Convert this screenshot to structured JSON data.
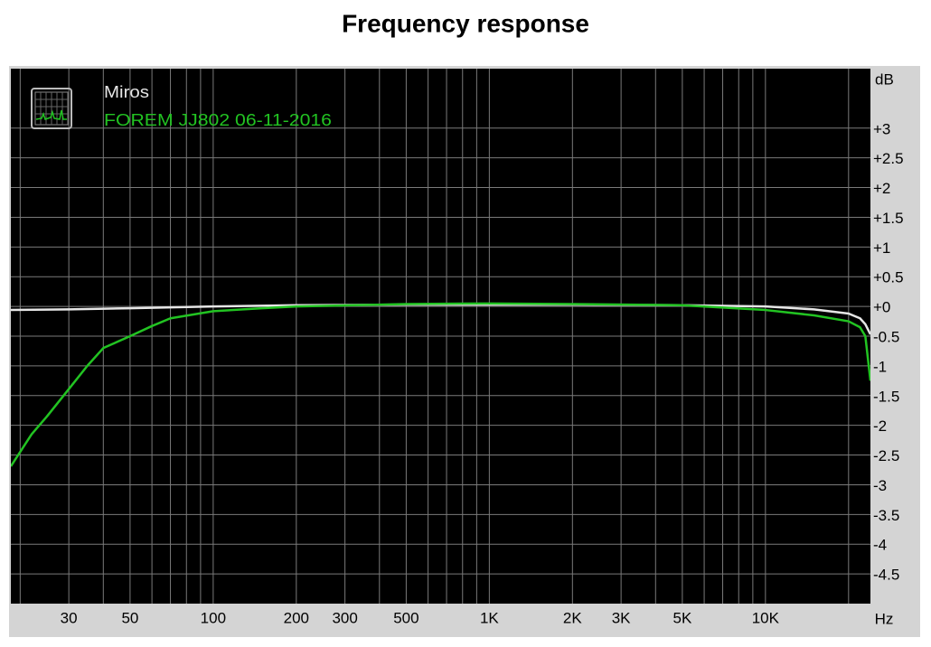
{
  "chart_data": {
    "type": "line",
    "title": "Frequency response",
    "x_label": "Hz",
    "y_label": "dB",
    "log_x": true,
    "grid": true,
    "xlim": [
      18.5,
      24000
    ],
    "ylim": [
      -5,
      4
    ],
    "xticks": [
      30,
      50,
      100,
      200,
      300,
      500,
      {
        "value": 1000,
        "label": "1K"
      },
      {
        "value": 2000,
        "label": "2K"
      },
      {
        "value": 3000,
        "label": "3K"
      },
      {
        "value": 5000,
        "label": "5K"
      },
      {
        "value": 10000,
        "label": "10K"
      }
    ],
    "minor_xticks": [
      20,
      40,
      60,
      70,
      80,
      90,
      400,
      600,
      700,
      800,
      900,
      4000,
      6000,
      7000,
      8000,
      9000,
      20000
    ],
    "yticks": [
      {
        "value": 3,
        "label": "+3"
      },
      {
        "value": 2.5,
        "label": "+2.5"
      },
      {
        "value": 2,
        "label": "+2"
      },
      {
        "value": 1.5,
        "label": "+1.5"
      },
      {
        "value": 1,
        "label": "+1"
      },
      {
        "value": 0.5,
        "label": "+0.5"
      },
      {
        "value": 0,
        "label": "+0"
      },
      -0.5,
      -1,
      -1.5,
      -2,
      -2.5,
      -3,
      -3.5,
      -4,
      -4.5
    ],
    "series": [
      {
        "name": "Miros",
        "color": "#e6e6e6",
        "x": [
          18.5,
          30,
          50,
          100,
          200,
          500,
          1000,
          2000,
          5000,
          10000,
          15000,
          20000,
          22000,
          23000,
          24000
        ],
        "values": [
          -0.06,
          -0.05,
          -0.03,
          0,
          0.02,
          0.03,
          0.03,
          0.03,
          0.02,
          0,
          -0.05,
          -0.12,
          -0.2,
          -0.3,
          -0.47
        ]
      },
      {
        "name": "FOREM JJ802 06-11-2016",
        "color": "#22c322",
        "x": [
          18.5,
          22,
          25,
          30,
          35,
          40,
          50,
          60,
          70,
          100,
          150,
          200,
          500,
          1000,
          2000,
          5000,
          10000,
          15000,
          20000,
          22000,
          23000,
          24000
        ],
        "values": [
          -2.69,
          -2.15,
          -1.85,
          -1.39,
          -1.0,
          -0.7,
          -0.5,
          -0.33,
          -0.2,
          -0.08,
          -0.03,
          0,
          0.04,
          0.05,
          0.04,
          0.02,
          -0.06,
          -0.15,
          -0.25,
          -0.35,
          -0.5,
          -1.25
        ]
      }
    ]
  }
}
